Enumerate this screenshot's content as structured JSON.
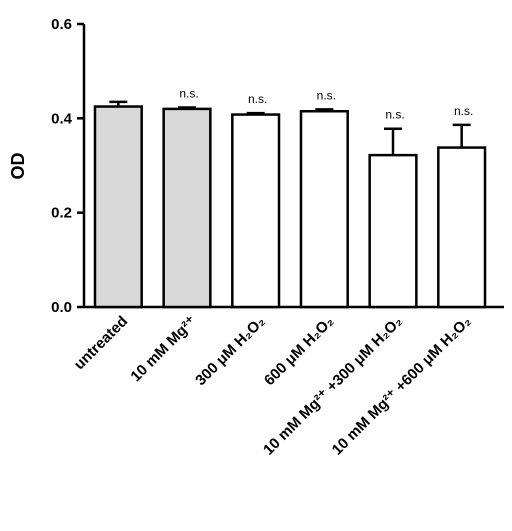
{
  "chart_data": {
    "type": "bar",
    "ylabel": "OD",
    "categories": [
      "untreated",
      "10 mM Mg²⁺",
      "300 μM H₂O₂",
      "600 μM H₂O₂",
      "10 mM Mg²⁺ +300 μM H₂O₂",
      "10 mM Mg²⁺ +600 μM H₂O₂"
    ],
    "values": [
      0.425,
      0.42,
      0.408,
      0.415,
      0.322,
      0.338
    ],
    "errors": [
      0.01,
      0.003,
      0.003,
      0.004,
      0.056,
      0.048
    ],
    "colors": [
      "#d9d9d9",
      "#d9d9d9",
      "#ffffff",
      "#ffffff",
      "#ffffff",
      "#ffffff"
    ],
    "annotations": [
      null,
      "n.s.",
      "n.s.",
      "n.s.",
      "n.s.",
      "n.s."
    ],
    "ylim": [
      0,
      0.6
    ],
    "yticks": [
      {
        "value": 0,
        "label": "0.0"
      },
      0.2,
      0.4,
      0.6
    ]
  }
}
